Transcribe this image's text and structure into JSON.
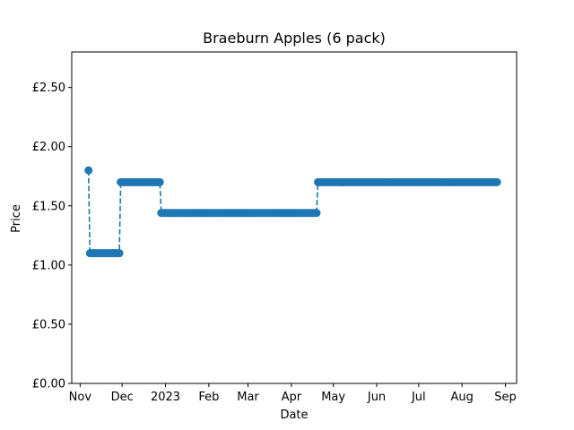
{
  "chart_data": {
    "type": "line",
    "title": "Braeburn Apples (6 pack)",
    "xlabel": "Date",
    "ylabel": "Price",
    "ylim": [
      0,
      2.8
    ],
    "xlim": [
      "2022-10-26",
      "2023-09-09"
    ],
    "yticks": [
      {
        "value": 0,
        "label": "£0.00"
      },
      {
        "value": 0.5,
        "label": "£0.50"
      },
      {
        "value": 1.0,
        "label": "£1.00"
      },
      {
        "value": 1.5,
        "label": "£1.50"
      },
      {
        "value": 2.0,
        "label": "£2.00"
      },
      {
        "value": 2.5,
        "label": "£2.50"
      }
    ],
    "xticks": [
      {
        "date": "2022-11-01",
        "label": "Nov"
      },
      {
        "date": "2022-12-01",
        "label": "Dec"
      },
      {
        "date": "2023-01-01",
        "label": "2023"
      },
      {
        "date": "2023-02-01",
        "label": "Feb"
      },
      {
        "date": "2023-03-01",
        "label": "Mar"
      },
      {
        "date": "2023-04-01",
        "label": "Apr"
      },
      {
        "date": "2023-05-01",
        "label": "May"
      },
      {
        "date": "2023-06-01",
        "label": "Jun"
      },
      {
        "date": "2023-07-01",
        "label": "Jul"
      },
      {
        "date": "2023-08-01",
        "label": "Aug"
      },
      {
        "date": "2023-09-01",
        "label": "Sep"
      }
    ],
    "series": [
      {
        "color": "#1f77b4",
        "line_style": "dashed",
        "marker": "circle",
        "price_segments": [
          {
            "start": "2022-11-07",
            "end": "2022-11-07",
            "value": 1.8
          },
          {
            "start": "2022-11-08",
            "end": "2022-11-29",
            "value": 1.1
          },
          {
            "start": "2022-11-30",
            "end": "2022-12-28",
            "value": 1.7
          },
          {
            "start": "2022-12-29",
            "end": "2023-04-19",
            "value": 1.44
          },
          {
            "start": "2023-04-20",
            "end": "2023-08-26",
            "value": 1.7
          }
        ]
      }
    ],
    "grid": false,
    "legend": false
  }
}
